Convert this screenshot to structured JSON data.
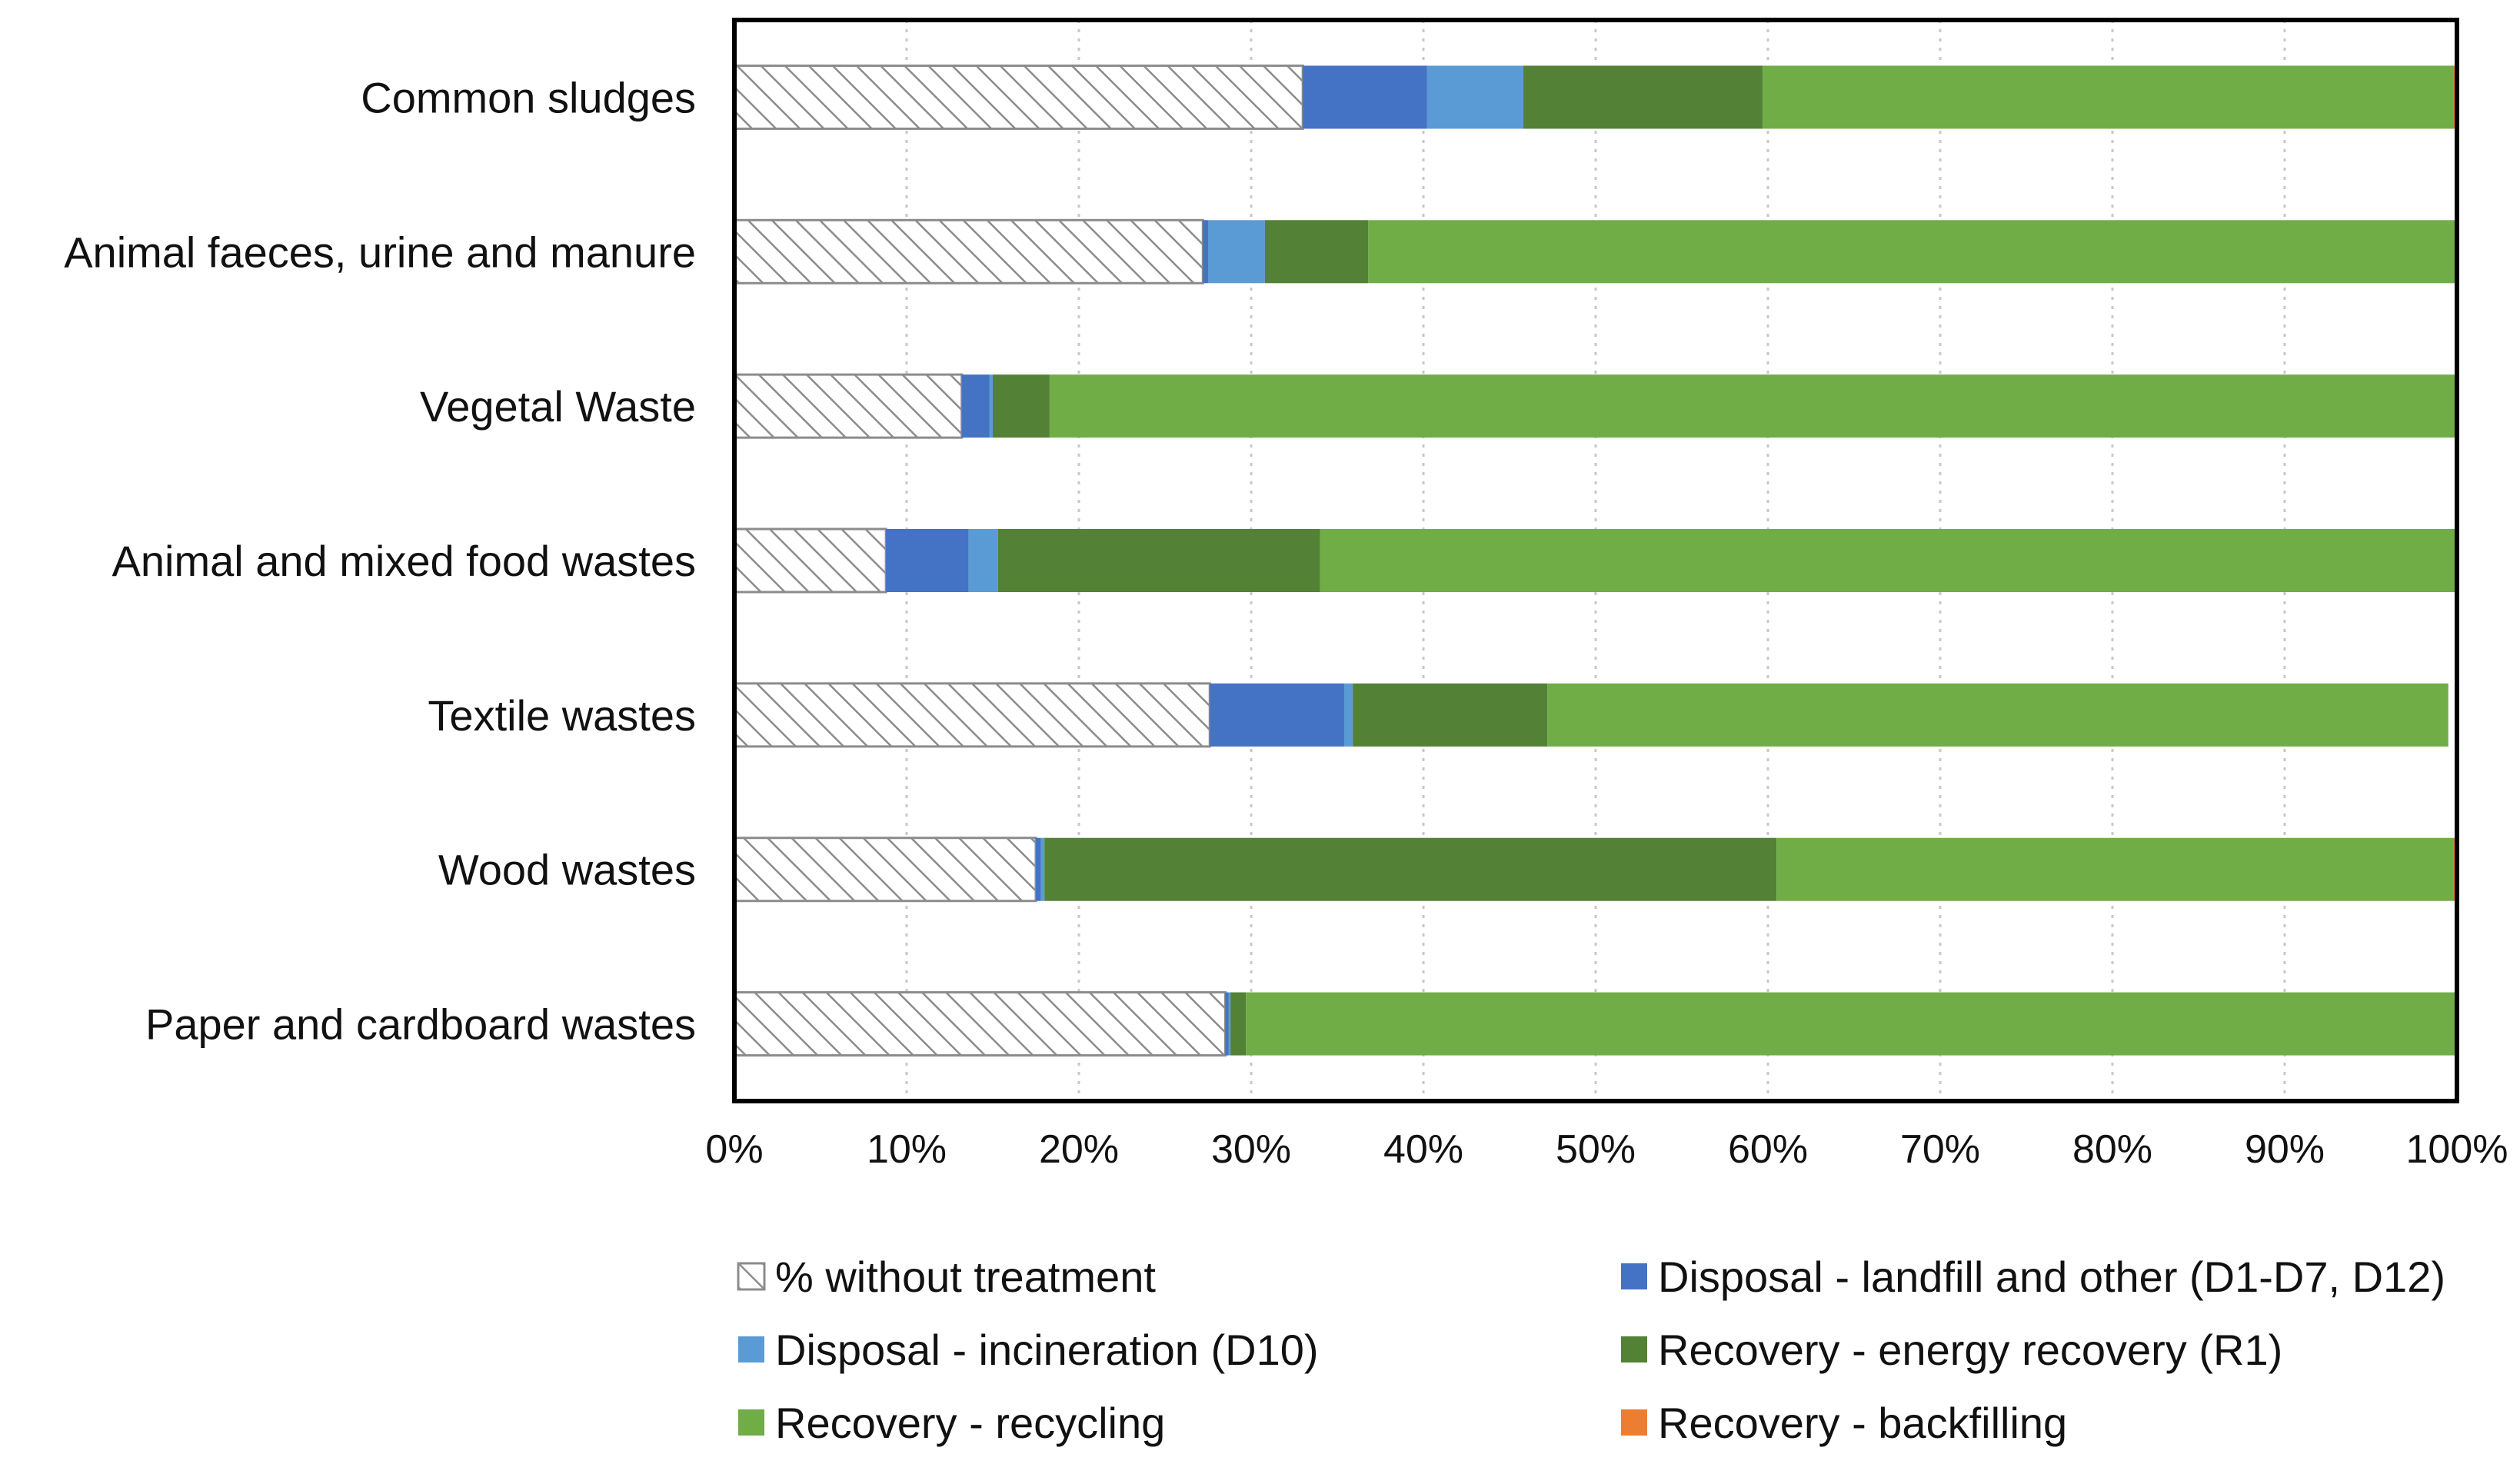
{
  "chart_data": {
    "type": "bar",
    "orientation": "horizontal",
    "stacking": "percent",
    "categories": [
      "Common sludges",
      "Animal faeces, urine and manure",
      "Vegetal Waste",
      "Animal and mixed food wastes",
      "Textile wastes",
      "Wood wastes",
      "Paper and cardboard wastes"
    ],
    "series": [
      {
        "name": "% without treatment",
        "color": "#ffffff",
        "pattern": "diagonal-hatch",
        "values": [
          33,
          27.2,
          13.2,
          8.8,
          27.6,
          17.5,
          28.5
        ]
      },
      {
        "name": "Disposal - landfill and other (D1-D7, D12)",
        "color": "#4472c4",
        "values": [
          7.2,
          0.3,
          1.6,
          4.8,
          7.8,
          0.3,
          0.2
        ]
      },
      {
        "name": "Disposal - incineration (D10)",
        "color": "#5b9bd5",
        "values": [
          5.6,
          3.3,
          0.2,
          1.7,
          0.5,
          0.2,
          0.1
        ]
      },
      {
        "name": "Recovery - energy recovery (R1)",
        "color": "#538135",
        "values": [
          13.9,
          6,
          3.3,
          18.7,
          11.3,
          42.5,
          0.9
        ]
      },
      {
        "name": "Recovery - recycling",
        "color": "#70ad47",
        "values": [
          40.1,
          63.2,
          81.7,
          66,
          52.3,
          39.3,
          70.3
        ]
      },
      {
        "name": "Recovery - backfilling",
        "color": "#ed7d31",
        "values": [
          0.2,
          0,
          0,
          0,
          0,
          0.2,
          0
        ]
      }
    ],
    "x_ticks": [
      "0%",
      "10%",
      "20%",
      "30%",
      "40%",
      "50%",
      "60%",
      "70%",
      "80%",
      "90%",
      "100%"
    ],
    "xlim": [
      0,
      100
    ],
    "grid": "vertical dotted",
    "legend_position": "bottom"
  }
}
